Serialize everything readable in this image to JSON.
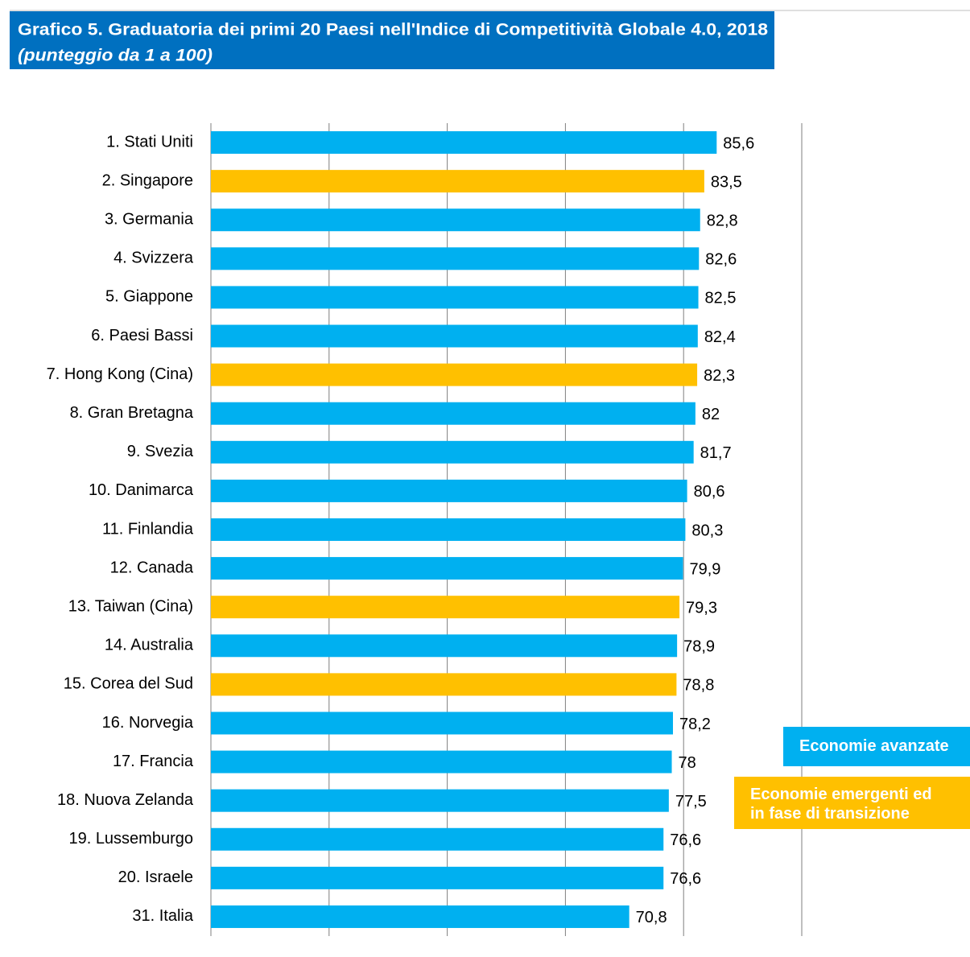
{
  "chart_data": {
    "type": "bar",
    "orientation": "horizontal",
    "title": "Grafico 5. Graduatoria dei primi 20 Paesi nell'Indice di Competitività Globale 4.0, 2018",
    "subtitle": "(punteggio da 1 a 100)",
    "categories": [
      "1. Stati Uniti",
      "2. Singapore",
      "3. Germania",
      "4. Svizzera",
      "5. Giappone",
      "6. Paesi Bassi",
      "7. Hong Kong (Cina)",
      "8. Gran Bretagna",
      "9. Svezia",
      "10. Danimarca",
      "11. Finlandia",
      "12. Canada",
      "13. Taiwan (Cina)",
      "14. Australia",
      "15. Corea del Sud",
      "16. Norvegia",
      "17. Francia",
      "18. Nuova Zelanda",
      "19. Lussemburgo",
      "20. Israele",
      "31. Italia"
    ],
    "values": [
      85.6,
      83.5,
      82.8,
      82.6,
      82.5,
      82.4,
      82.3,
      82,
      81.7,
      80.6,
      80.3,
      79.9,
      79.3,
      78.9,
      78.8,
      78.2,
      78,
      77.5,
      76.6,
      76.6,
      70.8
    ],
    "value_labels": [
      "85,6",
      "83,5",
      "82,8",
      "82,6",
      "82,5",
      "82,4",
      "82,3",
      "82",
      "81,7",
      "80,6",
      "80,3",
      "79,9",
      "79,3",
      "78,9",
      "78,8",
      "78,2",
      "78",
      "77,5",
      "76,6",
      "76,6",
      "70,8"
    ],
    "colors": [
      "#00b0f0",
      "#ffc000",
      "#00b0f0",
      "#00b0f0",
      "#00b0f0",
      "#00b0f0",
      "#ffc000",
      "#00b0f0",
      "#00b0f0",
      "#00b0f0",
      "#00b0f0",
      "#00b0f0",
      "#ffc000",
      "#00b0f0",
      "#ffc000",
      "#00b0f0",
      "#00b0f0",
      "#00b0f0",
      "#00b0f0",
      "#00b0f0",
      "#00b0f0"
    ],
    "legend": [
      {
        "name": "Economie avanzate",
        "color": "#00b0f0"
      },
      {
        "name": "Economie emergenti ed in fase di transizione",
        "color": "#ffc000"
      }
    ],
    "xlim": [
      0,
      100
    ],
    "xticks": [
      0,
      20,
      40,
      60,
      80,
      100
    ],
    "grid": true
  }
}
